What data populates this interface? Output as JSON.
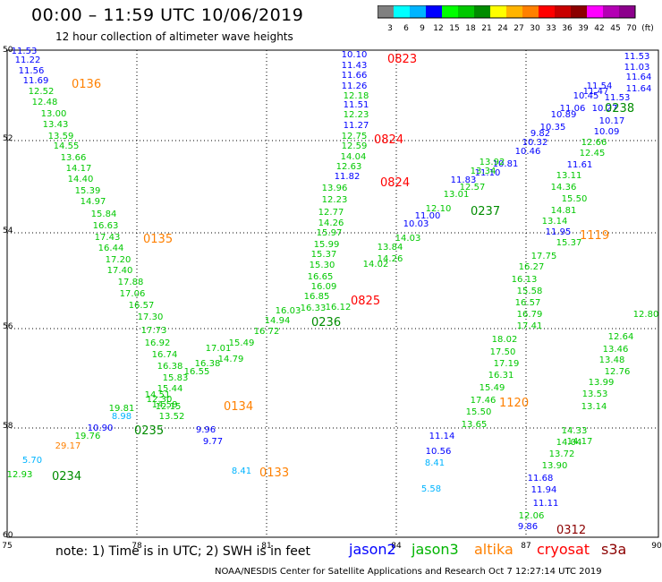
{
  "header": {
    "title": "00:00 – 11:59 UTC 10/06/2019",
    "subtitle": "12 hour collection of altimeter wave heights"
  },
  "color_scale": {
    "colors": [
      "#808080",
      "#00ffff",
      "#00b4ff",
      "#0000ff",
      "#00ff00",
      "#00c800",
      "#008c00",
      "#ffff00",
      "#ffb400",
      "#ff8000",
      "#ff0000",
      "#c80000",
      "#8c0000",
      "#ff00ff",
      "#b400b4",
      "#8c008c"
    ],
    "labels": [
      "3",
      "6",
      "9",
      "12",
      "15",
      "18",
      "21",
      "24",
      "27",
      "30",
      "33",
      "36",
      "39",
      "42",
      "45",
      "70",
      "(ft)"
    ]
  },
  "axes": {
    "lon_labels": [
      "75",
      "78",
      "81",
      "84",
      "87",
      "90"
    ],
    "lat_labels": [
      "50",
      "52",
      "54",
      "56",
      "58",
      "60"
    ]
  },
  "tracks": [
    {
      "name": "jason2-west",
      "color": "#0000ff",
      "vals": [
        "11.53",
        "11.22",
        "11.56",
        "11.69"
      ]
    },
    {
      "name": "jason3-west",
      "color": "#00c800",
      "vals": [
        "12.52",
        "12.48",
        "13.00",
        "13.43",
        "13.59",
        "14.55",
        "13.66",
        "14.17",
        "14.40",
        "15.39",
        "14.97",
        "15.84",
        "16.63",
        "17.43",
        "16.44",
        "17.20",
        "17.40",
        "17.88",
        "17.06",
        "16.57",
        "17.30",
        "17.73",
        "16.92",
        "16.74",
        "16.38",
        "15.83",
        "15.44",
        "14.51",
        "14.58",
        "13.52",
        "12.30",
        "12.15",
        "19.81"
      ]
    },
    {
      "name": "jason2-diagonal",
      "color": "#0000ff",
      "vals": [
        "10.90",
        "10.03",
        "11.00",
        "11.83",
        "11.10",
        "10.81",
        "10.46",
        "10.32",
        "9.82",
        "10.35",
        "10.89",
        "11.06",
        "10.45",
        "11.47",
        "11.54",
        "11.53",
        "10.27"
      ]
    },
    {
      "name": "jason3-diagonal",
      "color": "#00c800",
      "vals": [
        "19.76",
        "16.55",
        "16.38",
        "17.01",
        "15.49",
        "16.72",
        "14.94",
        "16.03",
        "16.33",
        "14.79",
        "14.02",
        "14.26",
        "13.84",
        "14.03",
        "12.10",
        "13.01",
        "12.57",
        "13.34",
        "13.92"
      ]
    },
    {
      "name": "jason2-upper",
      "color": "#0000ff",
      "vals": [
        "10.10",
        "11.43",
        "11.66",
        "11.26",
        "11.51",
        "11.27",
        "11.82"
      ]
    },
    {
      "name": "jason3-upper",
      "color": "#00c800",
      "vals": [
        "12.18",
        "12.23",
        "12.75",
        "12.59",
        "14.04",
        "12.63",
        "13.96",
        "12.23",
        "12.77",
        "14.26",
        "15.97",
        "15.99",
        "15.37",
        "15.30",
        "16.65",
        "16.09",
        "16.85",
        "16.12"
      ]
    },
    {
      "name": "jason2-east",
      "color": "#0000ff",
      "vals": [
        "11.53",
        "11.03",
        "11.64",
        "11.64",
        "10.17",
        "10.09",
        "11.61",
        "11.95",
        "11.14",
        "10.56",
        "11.68",
        "11.94",
        "11.11",
        "9.86",
        "9.96",
        "9.77"
      ]
    },
    {
      "name": "jason3-east",
      "color": "#00c800",
      "vals": [
        "12.66",
        "12.45",
        "13.11",
        "14.36",
        "15.50",
        "14.81",
        "13.14",
        "15.37",
        "17.75",
        "16.27",
        "16.13",
        "15.58",
        "16.57",
        "16.79",
        "17.41",
        "18.02",
        "17.50",
        "17.19",
        "16.31",
        "15.49",
        "17.46",
        "15.50",
        "13.65",
        "14.17",
        "14.33",
        "14.04",
        "13.72",
        "13.90",
        "12.06"
      ]
    },
    {
      "name": "jason3-far-east",
      "color": "#00c800",
      "vals": [
        "12.64",
        "13.46",
        "13.48",
        "12.76",
        "13.99",
        "13.53",
        "13.14",
        "12.80"
      ]
    },
    {
      "name": "extra",
      "color": "#00b4ff",
      "vals": [
        "8.98",
        "5.70",
        "8.41",
        "8.41",
        "5.58"
      ]
    },
    {
      "name": "altika",
      "color": "#ff8000",
      "vals": [
        "29.17"
      ]
    },
    {
      "name": "jason3-lower",
      "color": "#00c800",
      "vals": [
        "12.93"
      ]
    }
  ],
  "time_labels": [
    {
      "text": "0823",
      "color": "#ff0000"
    },
    {
      "text": "0824",
      "color": "#ff0000"
    },
    {
      "text": "0824",
      "color": "#ff0000"
    },
    {
      "text": "0825",
      "color": "#ff0000"
    },
    {
      "text": "0136",
      "color": "#ff8000"
    },
    {
      "text": "0135",
      "color": "#ff8000"
    },
    {
      "text": "0134",
      "color": "#ff8000"
    },
    {
      "text": "0133",
      "color": "#ff8000"
    },
    {
      "text": "0236",
      "color": "#008c00"
    },
    {
      "text": "0235",
      "color": "#008c00"
    },
    {
      "text": "0234",
      "color": "#008c00"
    },
    {
      "text": "0237",
      "color": "#008c00"
    },
    {
      "text": "0238",
      "color": "#008c00"
    },
    {
      "text": "1119",
      "color": "#ff8000"
    },
    {
      "text": "1120",
      "color": "#ff8000"
    },
    {
      "text": "0312",
      "color": "#8c0000"
    }
  ],
  "footer": {
    "note": "note:  1) Time is in UTC;  2) SWH is in feet",
    "satellites": [
      {
        "name": "jason2",
        "color": "#0000ff"
      },
      {
        "name": "jason3",
        "color": "#00b400"
      },
      {
        "name": "altika",
        "color": "#ff8000"
      },
      {
        "name": "cryosat",
        "color": "#ff0000"
      },
      {
        "name": "s3a",
        "color": "#8c0000"
      }
    ],
    "credit": "NOAA/NESDIS Center for Satellite Applications and Research    Oct  7 12:27:14 UTC 2019"
  }
}
